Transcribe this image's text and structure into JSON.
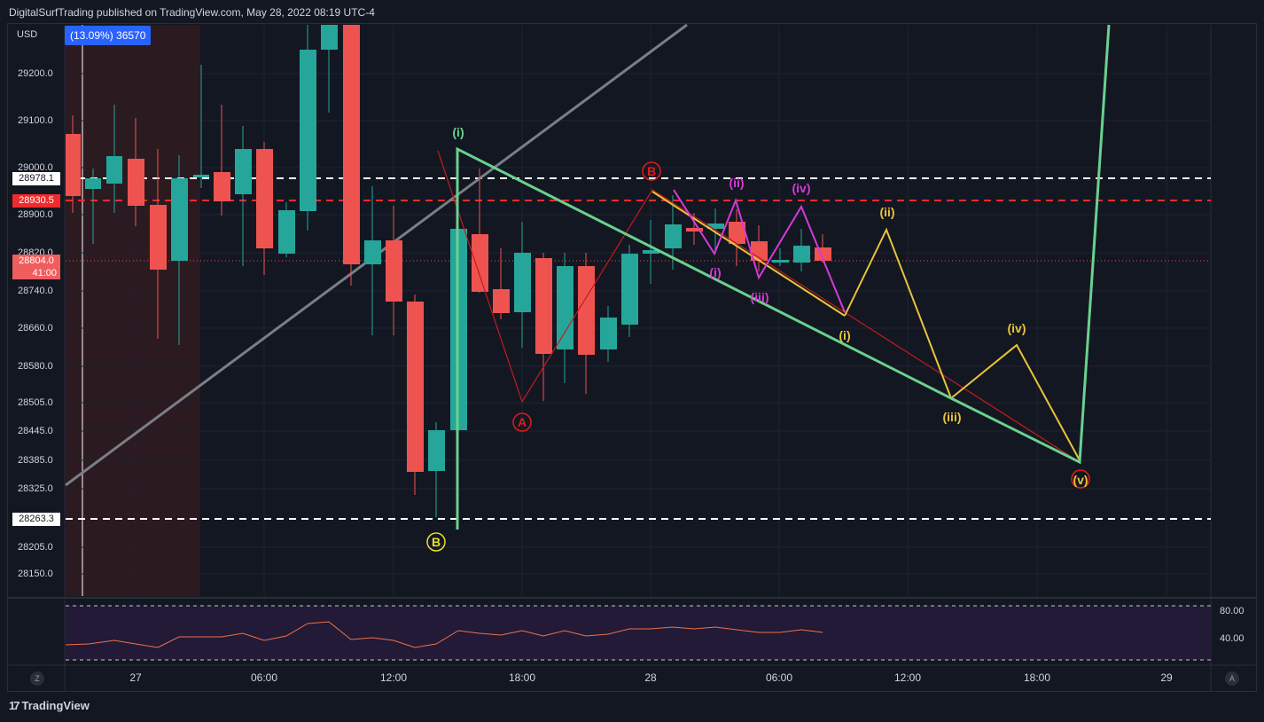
{
  "header": {
    "publish_text": "DigitalSurfTrading published on TradingView.com, May 28, 2022 08:19 UTC-4"
  },
  "currency": "USD",
  "badge": {
    "text": "(13.09%) 36570"
  },
  "price_axis": [
    "29200.0",
    "29100.0",
    "29000.0",
    "28900.0",
    "28820.0",
    "28740.0",
    "28660.0",
    "28580.0",
    "28505.0",
    "28445.0",
    "28385.0",
    "28325.0",
    "28205.0",
    "28150.0"
  ],
  "price_tags": {
    "top_line": "28978.1",
    "red_line": "28930.5",
    "current_price": "28804.0",
    "countdown": "41:00",
    "bottom_line": "28263.3"
  },
  "time_axis": [
    "27",
    "06:00",
    "12:00",
    "18:00",
    "28",
    "06:00",
    "12:00",
    "18:00",
    "29"
  ],
  "rsi_axis": [
    "80.00",
    "40.00"
  ],
  "wave_labels": {
    "green_i": "(i)",
    "red_B": "B",
    "red_A": "A",
    "yellow_B": "B",
    "magenta_i": "(i)",
    "magenta_ii": "(ii)",
    "magenta_iii": "(iii)",
    "magenta_iv": "(iv)",
    "yellow_i": "(i)",
    "yellow_ii": "(ii)",
    "yellow_iii": "(iii)",
    "yellow_iv": "(iv)",
    "end_v": "(v)"
  },
  "corner_buttons": {
    "left": "Z",
    "right": "A"
  },
  "footer": {
    "brand": "TradingView",
    "logo": "17"
  },
  "colors": {
    "up": "#26a69a",
    "down": "#ef5350",
    "background": "#131722",
    "green_wave": "#69d18e",
    "yellow_wave": "#e8c43a",
    "magenta_wave": "#d63ad6",
    "red_wave": "#e21b1b"
  }
}
